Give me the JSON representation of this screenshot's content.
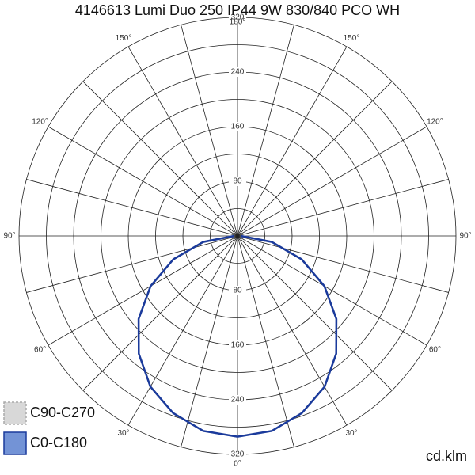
{
  "chart_data": {
    "type": "polar",
    "title": "4146613 Lumi Duo 250 IP44 9W 830/840 PCO WH",
    "unit": "cd.klm",
    "x": [
      -90,
      -80,
      -70,
      -60,
      -50,
      -40,
      -30,
      -20,
      -10,
      0,
      10,
      20,
      30,
      40,
      50,
      60,
      70,
      80,
      90
    ],
    "series": [
      {
        "name": "C90-C270",
        "color": "#cccccc",
        "values": [
          5,
          51,
          100,
          147,
          189,
          225,
          255,
          276,
          290,
          294,
          290,
          276,
          255,
          225,
          189,
          147,
          100,
          51,
          5
        ]
      },
      {
        "name": "C0-C180",
        "color": "#1a3a9c",
        "values": [
          5,
          51,
          100,
          147,
          189,
          225,
          255,
          276,
          290,
          294,
          290,
          276,
          255,
          225,
          189,
          147,
          100,
          51,
          5
        ]
      }
    ],
    "rlim": [
      0,
      320
    ],
    "rgrid": [
      40,
      80,
      120,
      160,
      200,
      240,
      280,
      320
    ],
    "rticks": [
      80,
      160,
      240,
      320
    ],
    "angle_ticks": [
      {
        "value": 0,
        "label": "0°"
      },
      {
        "value": 30,
        "label": "30°"
      },
      {
        "value": 60,
        "label": "60°"
      },
      {
        "value": 90,
        "label": "90°"
      },
      {
        "value": 120,
        "label": "120°"
      },
      {
        "value": 150,
        "label": "150°"
      },
      {
        "value": 180,
        "label": "180°"
      }
    ],
    "legend": "bottom-left"
  }
}
